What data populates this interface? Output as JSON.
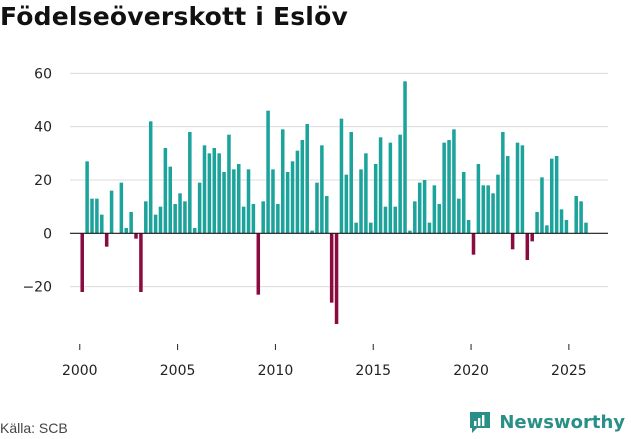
{
  "chart_data": {
    "type": "bar",
    "title": "Födelseöverskott i Eslöv",
    "xlabel": "",
    "ylabel": "",
    "ylim": [
      -40,
      65
    ],
    "xlim": [
      1999.5,
      2027
    ],
    "y_ticks": [
      60,
      40,
      20,
      0,
      -20
    ],
    "y_tick_labels": [
      "60",
      "40",
      "20",
      "0",
      "−20"
    ],
    "x_ticks": [
      2000,
      2005,
      2010,
      2015,
      2020,
      2025
    ],
    "x_tick_labels": [
      "2000",
      "2005",
      "2010",
      "2015",
      "2020",
      "2025"
    ],
    "grid": true,
    "positive_color": "#1ba39c",
    "negative_color": "#8a0b40",
    "x": [
      2000.125,
      2000.375,
      2000.625,
      2000.875,
      2001.125,
      2001.375,
      2001.625,
      2001.875,
      2002.125,
      2002.375,
      2002.625,
      2002.875,
      2003.125,
      2003.375,
      2003.625,
      2003.875,
      2004.125,
      2004.375,
      2004.625,
      2004.875,
      2005.125,
      2005.375,
      2005.625,
      2005.875,
      2006.125,
      2006.375,
      2006.625,
      2006.875,
      2007.125,
      2007.375,
      2007.625,
      2007.875,
      2008.125,
      2008.375,
      2008.625,
      2008.875,
      2009.125,
      2009.375,
      2009.625,
      2009.875,
      2010.125,
      2010.375,
      2010.625,
      2010.875,
      2011.125,
      2011.375,
      2011.625,
      2011.875,
      2012.125,
      2012.375,
      2012.625,
      2012.875,
      2013.125,
      2013.375,
      2013.625,
      2013.875,
      2014.125,
      2014.375,
      2014.625,
      2014.875,
      2015.125,
      2015.375,
      2015.625,
      2015.875,
      2016.125,
      2016.375,
      2016.625,
      2016.875,
      2017.125,
      2017.375,
      2017.625,
      2017.875,
      2018.125,
      2018.375,
      2018.625,
      2018.875,
      2019.125,
      2019.375,
      2019.625,
      2019.875,
      2020.125,
      2020.375,
      2020.625,
      2020.875,
      2021.125,
      2021.375,
      2021.625,
      2021.875,
      2022.125,
      2022.375,
      2022.625,
      2022.875,
      2023.125,
      2023.375,
      2023.625,
      2023.875,
      2024.125,
      2024.375,
      2024.625,
      2024.875,
      2025.125,
      2025.375,
      2025.625,
      2025.875
    ],
    "values": [
      -22,
      27,
      13,
      13,
      7,
      -5,
      16,
      0,
      19,
      2,
      8,
      -2,
      -22,
      12,
      42,
      7,
      10,
      32,
      25,
      11,
      15,
      12,
      38,
      2,
      19,
      33,
      30,
      32,
      30,
      23,
      37,
      24,
      26,
      10,
      24,
      11,
      -23,
      12,
      46,
      24,
      11,
      39,
      23,
      27,
      31,
      35,
      41,
      1,
      19,
      33,
      14,
      -26,
      -34,
      43,
      22,
      38,
      4,
      24,
      30,
      4,
      26,
      36,
      10,
      34,
      10,
      37,
      57,
      1,
      12,
      19,
      20,
      4,
      18,
      11,
      34,
      35,
      39,
      13,
      23,
      5,
      -8,
      26,
      18,
      18,
      15,
      22,
      38,
      29,
      -6,
      34,
      33,
      -10,
      -3,
      8,
      21,
      3,
      28,
      29,
      9,
      5,
      0,
      14,
      12,
      4
    ]
  },
  "source": "Källa: SCB",
  "logo": {
    "name": "Newsworthy",
    "color": "#2a8f87"
  }
}
